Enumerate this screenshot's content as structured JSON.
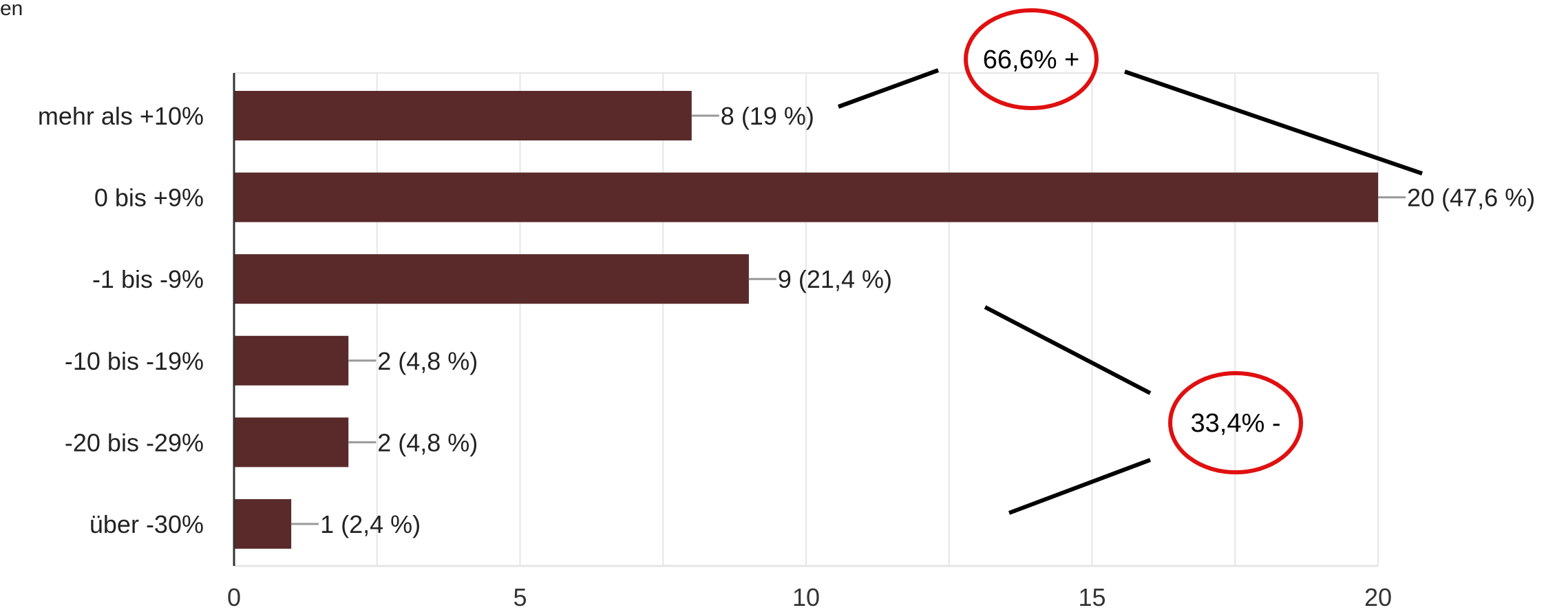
{
  "header_fragment": "en",
  "chart_data": {
    "type": "bar",
    "orientation": "horizontal",
    "categories": [
      "mehr als +10%",
      "0 bis +9%",
      "-1 bis -9%",
      "-10 bis -19%",
      "-20 bis -29%",
      "über -30%"
    ],
    "values": [
      8,
      20,
      9,
      2,
      2,
      1
    ],
    "data_labels": [
      "8 (19 %)",
      "20 (47,6 %)",
      "9 (21,4 %)",
      "2 (4,8 %)",
      "2 (4,8 %)",
      "1 (2,4 %)"
    ],
    "xlim": [
      0,
      20
    ],
    "x_ticks": [
      0,
      5,
      10,
      15,
      20
    ],
    "grid": true,
    "legend": "none",
    "title": "",
    "xlabel": "",
    "ylabel": "",
    "colors": {
      "bar": "#5a2a2b",
      "grid": "#e6e6e6",
      "axis": "#333333",
      "leader": "#999999",
      "annotation_ring": "#e01010"
    }
  },
  "annotations": {
    "positive": "66,6% +",
    "negative": "33,4% -"
  }
}
